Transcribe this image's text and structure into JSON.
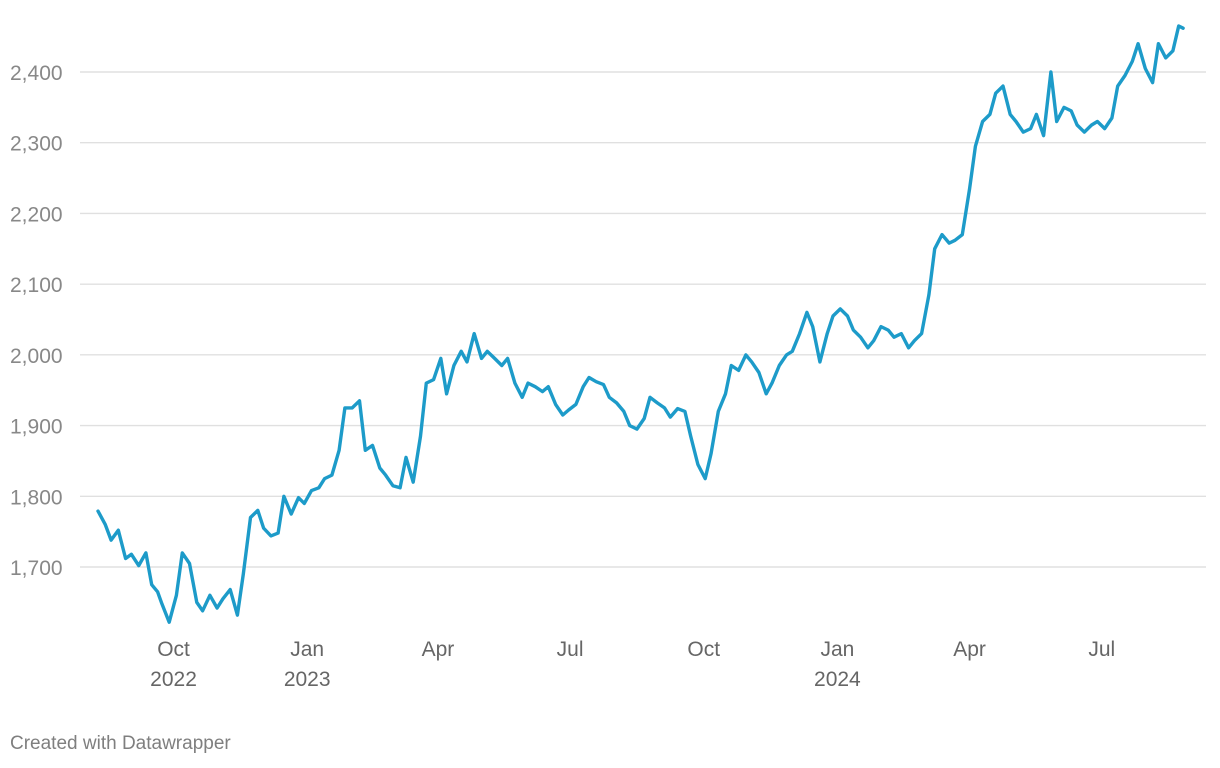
{
  "chart_data": {
    "type": "line",
    "title": "",
    "xlabel": "",
    "ylabel": "",
    "ylim": [
      1610,
      2480
    ],
    "xlim": [
      "2022-08-10",
      "2024-08-28"
    ],
    "grid": true,
    "yticks": [
      1700,
      1800,
      1900,
      2000,
      2100,
      2200,
      2300,
      2400
    ],
    "ytick_labels": [
      "1,700",
      "1,800",
      "1,900",
      "2,000",
      "2,100",
      "2,200",
      "2,300",
      "2,400"
    ],
    "xticks": [
      {
        "date": "2022-10-01",
        "label": "Oct",
        "year": "2022"
      },
      {
        "date": "2023-01-01",
        "label": "Jan",
        "year": "2023"
      },
      {
        "date": "2023-04-01",
        "label": "Apr",
        "year": ""
      },
      {
        "date": "2023-07-01",
        "label": "Jul",
        "year": ""
      },
      {
        "date": "2023-10-01",
        "label": "Oct",
        "year": ""
      },
      {
        "date": "2024-01-01",
        "label": "Jan",
        "year": "2024"
      },
      {
        "date": "2024-04-01",
        "label": "Apr",
        "year": ""
      },
      {
        "date": "2024-07-01",
        "label": "Jul",
        "year": ""
      }
    ],
    "series": [
      {
        "color": "#1d9bc9",
        "x": [
          "2022-08-10",
          "2022-08-15",
          "2022-08-19",
          "2022-08-24",
          "2022-08-29",
          "2022-09-02",
          "2022-09-07",
          "2022-09-12",
          "2022-09-16",
          "2022-09-20",
          "2022-09-23",
          "2022-09-28",
          "2022-10-03",
          "2022-10-07",
          "2022-10-12",
          "2022-10-17",
          "2022-10-21",
          "2022-10-26",
          "2022-10-31",
          "2022-11-04",
          "2022-11-09",
          "2022-11-14",
          "2022-11-18",
          "2022-11-23",
          "2022-11-28",
          "2022-12-02",
          "2022-12-07",
          "2022-12-12",
          "2022-12-16",
          "2022-12-21",
          "2022-12-26",
          "2022-12-30",
          "2023-01-04",
          "2023-01-09",
          "2023-01-13",
          "2023-01-18",
          "2023-01-23",
          "2023-01-27",
          "2023-02-01",
          "2023-02-06",
          "2023-02-10",
          "2023-02-15",
          "2023-02-20",
          "2023-02-24",
          "2023-03-01",
          "2023-03-06",
          "2023-03-10",
          "2023-03-15",
          "2023-03-20",
          "2023-03-24",
          "2023-03-29",
          "2023-04-03",
          "2023-04-07",
          "2023-04-12",
          "2023-04-17",
          "2023-04-21",
          "2023-04-26",
          "2023-05-01",
          "2023-05-05",
          "2023-05-10",
          "2023-05-15",
          "2023-05-19",
          "2023-05-24",
          "2023-05-29",
          "2023-06-02",
          "2023-06-07",
          "2023-06-12",
          "2023-06-16",
          "2023-06-21",
          "2023-06-26",
          "2023-06-30",
          "2023-07-05",
          "2023-07-10",
          "2023-07-14",
          "2023-07-19",
          "2023-07-24",
          "2023-07-28",
          "2023-08-02",
          "2023-08-07",
          "2023-08-11",
          "2023-08-16",
          "2023-08-21",
          "2023-08-25",
          "2023-08-30",
          "2023-09-04",
          "2023-09-08",
          "2023-09-13",
          "2023-09-18",
          "2023-09-22",
          "2023-09-27",
          "2023-10-02",
          "2023-10-06",
          "2023-10-11",
          "2023-10-16",
          "2023-10-20",
          "2023-10-25",
          "2023-10-30",
          "2023-11-03",
          "2023-11-08",
          "2023-11-13",
          "2023-11-17",
          "2023-11-22",
          "2023-11-27",
          "2023-12-01",
          "2023-12-06",
          "2023-12-11",
          "2023-12-15",
          "2023-12-20",
          "2023-12-25",
          "2023-12-29",
          "2024-01-03",
          "2024-01-08",
          "2024-01-12",
          "2024-01-17",
          "2024-01-22",
          "2024-01-26",
          "2024-01-31",
          "2024-02-05",
          "2024-02-09",
          "2024-02-14",
          "2024-02-19",
          "2024-02-23",
          "2024-02-28",
          "2024-03-04",
          "2024-03-08",
          "2024-03-13",
          "2024-03-18",
          "2024-03-22",
          "2024-03-27",
          "2024-04-01",
          "2024-04-05",
          "2024-04-10",
          "2024-04-15",
          "2024-04-19",
          "2024-04-24",
          "2024-04-29",
          "2024-05-03",
          "2024-05-08",
          "2024-05-13",
          "2024-05-17",
          "2024-05-22",
          "2024-05-27",
          "2024-05-31",
          "2024-06-05",
          "2024-06-10",
          "2024-06-14",
          "2024-06-19",
          "2024-06-24",
          "2024-06-28",
          "2024-07-03",
          "2024-07-08",
          "2024-07-12",
          "2024-07-17",
          "2024-07-22",
          "2024-07-26",
          "2024-07-31",
          "2024-08-05",
          "2024-08-09",
          "2024-08-14",
          "2024-08-19",
          "2024-08-23",
          "2024-08-26"
        ],
        "y": [
          1779,
          1760,
          1738,
          1752,
          1712,
          1718,
          1702,
          1720,
          1675,
          1665,
          1648,
          1622,
          1660,
          1720,
          1705,
          1650,
          1638,
          1660,
          1642,
          1655,
          1668,
          1632,
          1690,
          1770,
          1780,
          1755,
          1744,
          1748,
          1800,
          1775,
          1798,
          1790,
          1808,
          1812,
          1825,
          1830,
          1865,
          1925,
          1925,
          1935,
          1865,
          1872,
          1840,
          1830,
          1815,
          1812,
          1855,
          1820,
          1885,
          1960,
          1965,
          1995,
          1945,
          1985,
          2005,
          1990,
          2030,
          1995,
          2005,
          1995,
          1985,
          1995,
          1960,
          1940,
          1960,
          1955,
          1948,
          1955,
          1930,
          1915,
          1922,
          1930,
          1955,
          1968,
          1962,
          1958,
          1940,
          1932,
          1920,
          1900,
          1895,
          1910,
          1940,
          1932,
          1925,
          1912,
          1924,
          1920,
          1885,
          1845,
          1825,
          1860,
          1920,
          1945,
          1985,
          1978,
          2000,
          1990,
          1975,
          1945,
          1960,
          1985,
          2000,
          2005,
          2030,
          2060,
          2040,
          1990,
          2030,
          2055,
          2065,
          2055,
          2035,
          2025,
          2010,
          2020,
          2040,
          2035,
          2025,
          2030,
          2010,
          2020,
          2030,
          2085,
          2150,
          2170,
          2158,
          2162,
          2170,
          2235,
          2295,
          2330,
          2340,
          2370,
          2380,
          2340,
          2330,
          2315,
          2320,
          2340,
          2310,
          2400,
          2330,
          2350,
          2345,
          2325,
          2315,
          2325,
          2330,
          2320,
          2335,
          2380,
          2395,
          2415,
          2440,
          2405,
          2385,
          2440,
          2420,
          2430,
          2465,
          2462
        ]
      }
    ]
  },
  "footer": {
    "credit": "Created with Datawrapper"
  }
}
